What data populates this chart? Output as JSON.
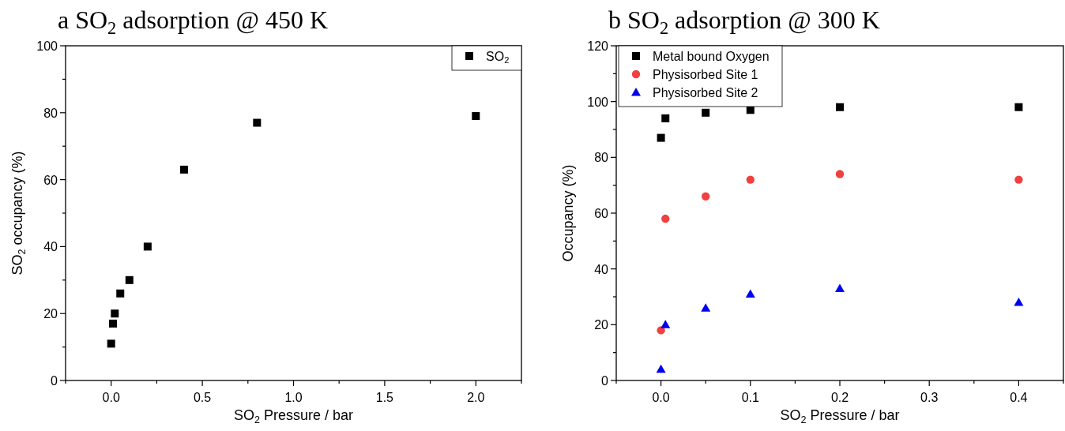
{
  "chart_data": [
    {
      "type": "scatter",
      "title": "a  SO$_{2}$ adsorption @ 450 K",
      "xlabel": "SO$_{2}$ Pressure / bar",
      "ylabel": "SO$_{2}$ occupancy (%)",
      "xlim": [
        -0.25,
        2.25
      ],
      "xticks": [
        {
          "value": -0.25,
          "label": null
        },
        {
          "value": 0,
          "label": "0.0"
        },
        {
          "value": 0.25,
          "label": null
        },
        0.5,
        {
          "value": 0.75,
          "label": null
        },
        {
          "value": 1,
          "label": "1.0"
        },
        {
          "value": 1.25,
          "label": null
        },
        1.5,
        {
          "value": 1.75,
          "label": null
        },
        {
          "value": 2,
          "label": "2.0"
        },
        {
          "value": 2.25,
          "label": null
        }
      ],
      "ylim": [
        0,
        100
      ],
      "yticks": [
        0,
        {
          "value": 10,
          "label": null
        },
        20,
        {
          "value": 30,
          "label": null
        },
        40,
        {
          "value": 50,
          "label": null
        },
        60,
        {
          "value": 70,
          "label": null
        },
        80,
        {
          "value": 90,
          "label": null
        },
        100
      ],
      "legend": "top right",
      "marker": "square",
      "series": [
        {
          "name": "SO$_{2}$",
          "color": "#000000",
          "x": [
            0,
            0.01,
            0.02,
            0.05,
            0.1,
            0.2,
            0.4,
            0.8,
            2.0
          ],
          "values": [
            11,
            17,
            20,
            26,
            30,
            40,
            63,
            77,
            79
          ]
        }
      ]
    },
    {
      "type": "scatter",
      "title": "b  SO$_{2}$ adsorption @ 300 K",
      "xlabel": "SO$_{2}$ Pressure / bar",
      "ylabel": "Occupancy (%)",
      "xlim": [
        -0.05,
        0.45
      ],
      "xticks": [
        {
          "value": -0.05,
          "label": null
        },
        {
          "value": 0,
          "label": "0.0"
        },
        {
          "value": 0.05,
          "label": null
        },
        0.1,
        {
          "value": 0.15,
          "label": null
        },
        0.2,
        {
          "value": 0.25,
          "label": null
        },
        0.3,
        {
          "value": 0.35,
          "label": null
        },
        0.4,
        {
          "value": 0.45,
          "label": null
        }
      ],
      "ylim": [
        0,
        120
      ],
      "yticks": [
        0,
        {
          "value": 10,
          "label": null
        },
        20,
        {
          "value": 30,
          "label": null
        },
        40,
        {
          "value": 50,
          "label": null
        },
        60,
        {
          "value": 70,
          "label": null
        },
        80,
        {
          "value": 90,
          "label": null
        },
        100,
        {
          "value": 110,
          "label": null
        },
        120
      ],
      "legend": "top left",
      "series": [
        {
          "name": "Metal bound Oxygen",
          "color": "#000000",
          "marker": "square",
          "x": [
            0,
            0.005,
            0.05,
            0.1,
            0.2,
            0.4
          ],
          "values": [
            87,
            94,
            96,
            97,
            98,
            98
          ]
        },
        {
          "name": "Physisorbed Site 1",
          "color": "#f04040",
          "marker": "circle",
          "x": [
            0,
            0.005,
            0.05,
            0.1,
            0.2,
            0.4
          ],
          "values": [
            18,
            58,
            66,
            72,
            74,
            72
          ]
        },
        {
          "name": "Physisorbed Site 2",
          "color": "#0000f0",
          "marker": "triangle",
          "x": [
            0,
            0.005,
            0.05,
            0.1,
            0.2,
            0.4
          ],
          "values": [
            4,
            20,
            26,
            31,
            33,
            28
          ]
        }
      ]
    }
  ]
}
